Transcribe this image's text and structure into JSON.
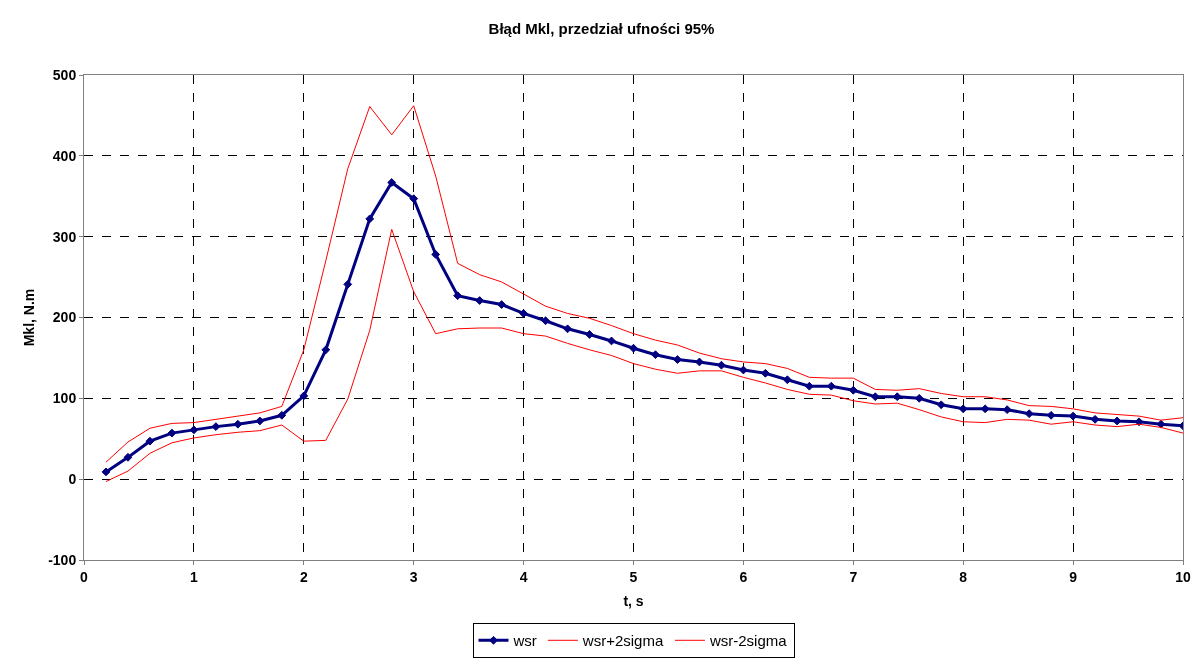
{
  "chart_data": {
    "type": "line",
    "title": "Błąd Mkl, przedział ufności 95%",
    "xlabel": "t, s",
    "ylabel": "Mkl, N.m",
    "x": [
      0.2,
      0.4,
      0.6,
      0.8,
      1.0,
      1.2,
      1.4,
      1.6,
      1.8,
      2.0,
      2.2,
      2.4,
      2.6,
      2.8,
      3.0,
      3.2,
      3.4,
      3.6,
      3.8,
      4.0,
      4.2,
      4.4,
      4.6,
      4.8,
      5.0,
      5.2,
      5.4,
      5.6,
      5.8,
      6.0,
      6.2,
      6.4,
      6.6,
      6.8,
      7.0,
      7.2,
      7.4,
      7.6,
      7.8,
      8.0,
      8.2,
      8.4,
      8.6,
      8.8,
      9.0,
      9.2,
      9.4,
      9.6,
      9.8,
      10.0
    ],
    "series": [
      {
        "name": "wsr",
        "color": "#000080",
        "marker": "diamond",
        "values": [
          9,
          27,
          47,
          57,
          61,
          65,
          68,
          72,
          79,
          103,
          160,
          241,
          322,
          367,
          347,
          278,
          227,
          221,
          216,
          205,
          196,
          186,
          179,
          171,
          162,
          154,
          148,
          145,
          141,
          135,
          131,
          123,
          115,
          115,
          110,
          102,
          102,
          100,
          92,
          87,
          87,
          86,
          81,
          79,
          78,
          74,
          72,
          71,
          68,
          66
        ]
      },
      {
        "name": "wsr+2sigma",
        "color": "#ff0000",
        "marker": "none",
        "values": [
          21,
          46,
          63,
          69,
          70,
          74,
          78,
          82,
          90,
          160,
          270,
          384,
          461,
          426,
          462,
          375,
          267,
          253,
          244,
          229,
          214,
          205,
          199,
          190,
          180,
          172,
          166,
          156,
          149,
          145,
          143,
          137,
          126,
          125,
          125,
          111,
          110,
          112,
          106,
          102,
          102,
          98,
          91,
          90,
          87,
          82,
          80,
          78,
          73,
          76
        ]
      },
      {
        "name": "wsr-2sigma",
        "color": "#ff0000",
        "marker": "none",
        "values": [
          -3,
          10,
          32,
          45,
          51,
          55,
          58,
          60,
          67,
          47,
          48,
          99,
          184,
          309,
          232,
          180,
          186,
          187,
          187,
          180,
          177,
          168,
          160,
          153,
          143,
          136,
          131,
          134,
          134,
          126,
          119,
          111,
          105,
          104,
          97,
          93,
          94,
          86,
          77,
          71,
          70,
          74,
          73,
          68,
          71,
          67,
          65,
          68,
          64,
          57
        ]
      }
    ],
    "xlim": [
      0,
      10
    ],
    "xticks": [
      0,
      1,
      2,
      3,
      4,
      5,
      6,
      7,
      8,
      9,
      10
    ],
    "ylim": [
      -100,
      500
    ],
    "yticks": [
      -100,
      0,
      100,
      200,
      300,
      400,
      500
    ],
    "grid": true,
    "legend": "bottom",
    "line_style": "solid"
  }
}
